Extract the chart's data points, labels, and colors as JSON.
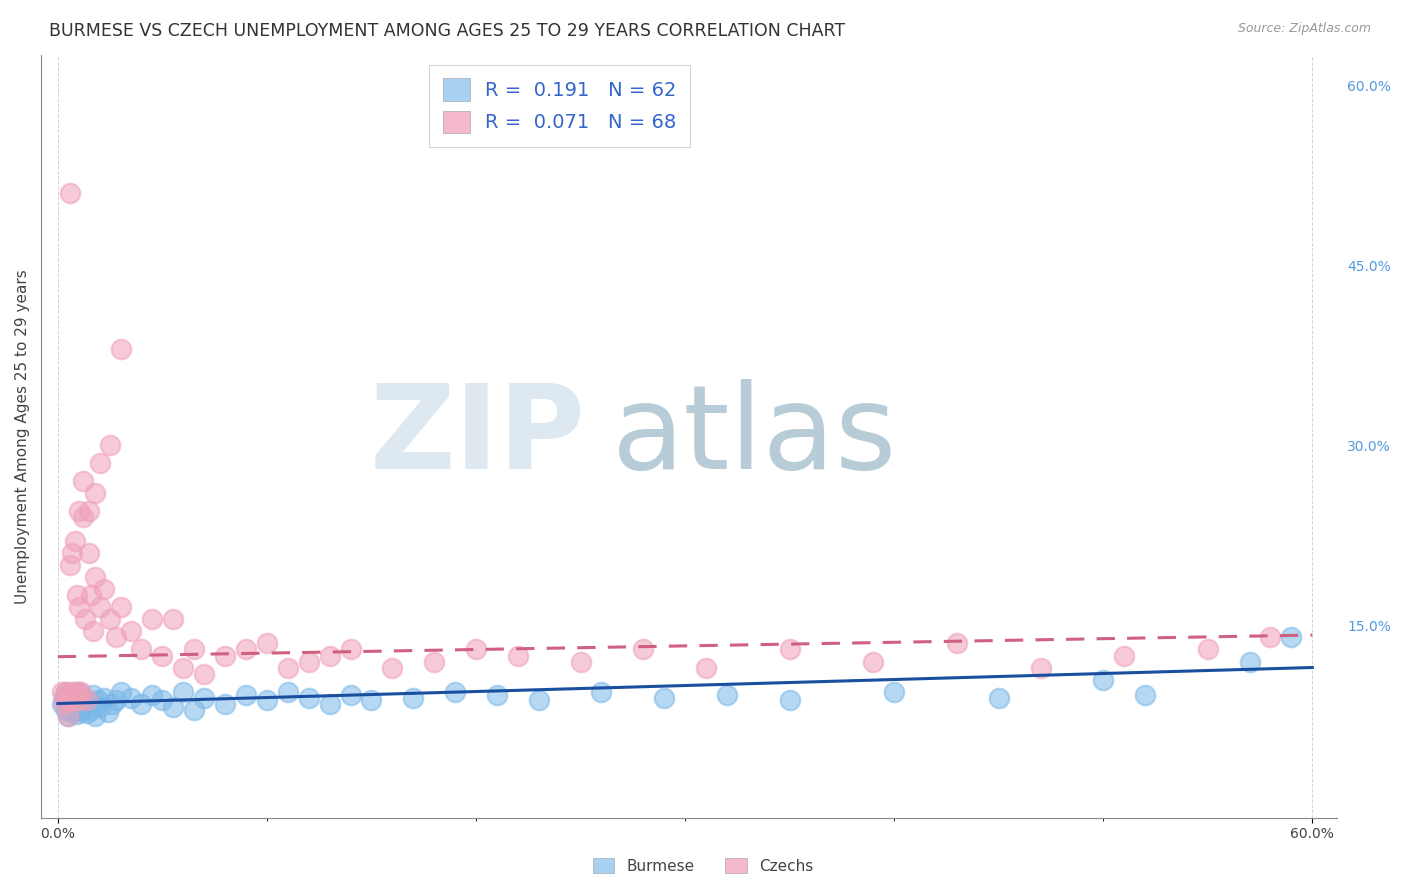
{
  "title": "BURMESE VS CZECH UNEMPLOYMENT AMONG AGES 25 TO 29 YEARS CORRELATION CHART",
  "source": "Source: ZipAtlas.com",
  "ylabel": "Unemployment Among Ages 25 to 29 years",
  "burmese_color": "#7ab8e8",
  "czech_color": "#f0a0b8",
  "burmese_line_color": "#1a4fa0",
  "czech_line_color": "#d06080",
  "burmese_legend_color": "#a8d0f0",
  "czech_legend_color": "#f5b8cc",
  "grid_color": "#c8c8c8",
  "background_color": "#ffffff",
  "title_fontsize": 12.5,
  "source_fontsize": 9,
  "axis_label_fontsize": 11,
  "tick_fontsize": 10,
  "right_tick_color": "#5599dd",
  "watermark_zip_color": "#dde8f0",
  "watermark_atlas_color": "#b8ccd8",
  "burmese_r": 0.191,
  "burmese_n": 62,
  "czech_r": 0.071,
  "czech_n": 68,
  "xlim": [
    0.0,
    0.6
  ],
  "ylim": [
    0.0,
    0.6
  ],
  "burmese_x": [
    0.002,
    0.003,
    0.004,
    0.004,
    0.005,
    0.005,
    0.006,
    0.006,
    0.007,
    0.007,
    0.008,
    0.008,
    0.009,
    0.009,
    0.01,
    0.01,
    0.011,
    0.011,
    0.012,
    0.013,
    0.014,
    0.015,
    0.016,
    0.017,
    0.018,
    0.019,
    0.02,
    0.022,
    0.024,
    0.026,
    0.028,
    0.03,
    0.035,
    0.04,
    0.045,
    0.05,
    0.055,
    0.06,
    0.065,
    0.07,
    0.08,
    0.09,
    0.1,
    0.11,
    0.12,
    0.13,
    0.14,
    0.15,
    0.17,
    0.19,
    0.21,
    0.23,
    0.26,
    0.29,
    0.32,
    0.35,
    0.4,
    0.45,
    0.5,
    0.52,
    0.57,
    0.59
  ],
  "burmese_y": [
    0.085,
    0.09,
    0.08,
    0.095,
    0.075,
    0.088,
    0.082,
    0.092,
    0.078,
    0.086,
    0.08,
    0.093,
    0.076,
    0.088,
    0.082,
    0.095,
    0.079,
    0.087,
    0.083,
    0.09,
    0.077,
    0.086,
    0.08,
    0.092,
    0.075,
    0.088,
    0.082,
    0.09,
    0.078,
    0.085,
    0.088,
    0.095,
    0.09,
    0.085,
    0.092,
    0.088,
    0.082,
    0.095,
    0.08,
    0.09,
    0.085,
    0.092,
    0.088,
    0.095,
    0.09,
    0.085,
    0.092,
    0.088,
    0.09,
    0.095,
    0.092,
    0.088,
    0.095,
    0.09,
    0.092,
    0.088,
    0.095,
    0.09,
    0.105,
    0.092,
    0.12,
    0.14
  ],
  "czech_x": [
    0.002,
    0.003,
    0.004,
    0.004,
    0.005,
    0.005,
    0.006,
    0.006,
    0.007,
    0.007,
    0.008,
    0.008,
    0.009,
    0.009,
    0.01,
    0.01,
    0.011,
    0.012,
    0.013,
    0.014,
    0.015,
    0.016,
    0.017,
    0.018,
    0.02,
    0.022,
    0.025,
    0.028,
    0.03,
    0.035,
    0.04,
    0.045,
    0.05,
    0.055,
    0.06,
    0.065,
    0.07,
    0.08,
    0.09,
    0.1,
    0.11,
    0.12,
    0.13,
    0.14,
    0.16,
    0.18,
    0.2,
    0.22,
    0.25,
    0.28,
    0.31,
    0.35,
    0.39,
    0.43,
    0.47,
    0.51,
    0.55,
    0.58,
    0.03,
    0.025,
    0.02,
    0.018,
    0.015,
    0.012,
    0.01,
    0.008,
    0.006,
    0.005
  ],
  "czech_y": [
    0.095,
    0.085,
    0.088,
    0.095,
    0.075,
    0.092,
    0.2,
    0.088,
    0.095,
    0.21,
    0.088,
    0.22,
    0.095,
    0.175,
    0.088,
    0.165,
    0.095,
    0.24,
    0.155,
    0.088,
    0.21,
    0.175,
    0.145,
    0.19,
    0.165,
    0.18,
    0.155,
    0.14,
    0.165,
    0.145,
    0.13,
    0.155,
    0.125,
    0.155,
    0.115,
    0.13,
    0.11,
    0.125,
    0.13,
    0.135,
    0.115,
    0.12,
    0.125,
    0.13,
    0.115,
    0.12,
    0.13,
    0.125,
    0.12,
    0.13,
    0.115,
    0.13,
    0.12,
    0.135,
    0.115,
    0.125,
    0.13,
    0.14,
    0.38,
    0.3,
    0.285,
    0.26,
    0.245,
    0.27,
    0.245,
    0.095,
    0.51,
    0.092
  ]
}
